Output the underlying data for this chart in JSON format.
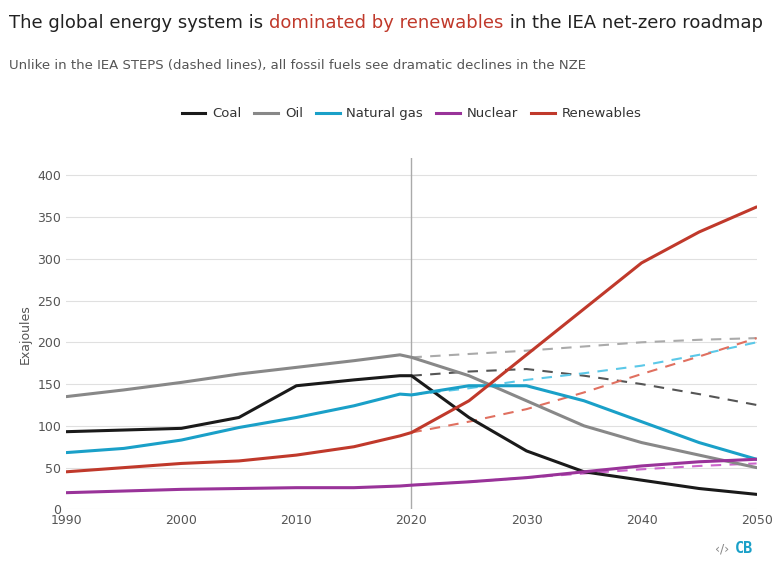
{
  "title_black1": "The global energy system is ",
  "title_red": "dominated by renewables",
  "title_black2": " in the IEA net-zero roadmap",
  "subtitle": "Unlike in the IEA STEPS (dashed lines), all fossil fuels see dramatic declines in the NZE",
  "ylabel": "Exajoules",
  "xlim": [
    1990,
    2050
  ],
  "ylim": [
    0,
    420
  ],
  "yticks": [
    0,
    50,
    100,
    150,
    200,
    250,
    300,
    350,
    400
  ],
  "xticks": [
    1990,
    2000,
    2010,
    2020,
    2030,
    2040,
    2050
  ],
  "vline_x": 2020,
  "background_color": "#ffffff",
  "grid_color": "#e0e0e0",
  "nze_series": {
    "Coal": {
      "color": "#1a1a1a",
      "x": [
        1990,
        1995,
        2000,
        2005,
        2010,
        2015,
        2019,
        2020,
        2025,
        2030,
        2035,
        2040,
        2045,
        2050
      ],
      "y": [
        93,
        95,
        97,
        110,
        148,
        155,
        160,
        160,
        110,
        70,
        45,
        35,
        25,
        18
      ]
    },
    "Oil": {
      "color": "#888888",
      "x": [
        1990,
        1995,
        2000,
        2005,
        2010,
        2015,
        2019,
        2020,
        2025,
        2030,
        2035,
        2040,
        2045,
        2050
      ],
      "y": [
        135,
        143,
        152,
        162,
        170,
        178,
        185,
        182,
        160,
        130,
        100,
        80,
        65,
        50
      ]
    },
    "Natural gas": {
      "color": "#1aa0c8",
      "x": [
        1990,
        1995,
        2000,
        2005,
        2010,
        2015,
        2019,
        2020,
        2025,
        2030,
        2035,
        2040,
        2045,
        2050
      ],
      "y": [
        68,
        73,
        83,
        98,
        110,
        124,
        138,
        137,
        148,
        148,
        130,
        105,
        80,
        60
      ]
    },
    "Nuclear": {
      "color": "#993399",
      "x": [
        1990,
        1995,
        2000,
        2005,
        2010,
        2015,
        2019,
        2020,
        2025,
        2030,
        2035,
        2040,
        2045,
        2050
      ],
      "y": [
        20,
        22,
        24,
        25,
        26,
        26,
        28,
        29,
        33,
        38,
        45,
        52,
        57,
        60
      ]
    },
    "Renewables": {
      "color": "#c0392b",
      "x": [
        1990,
        1995,
        2000,
        2005,
        2010,
        2015,
        2019,
        2020,
        2025,
        2030,
        2035,
        2040,
        2045,
        2050
      ],
      "y": [
        45,
        50,
        55,
        58,
        65,
        75,
        88,
        92,
        130,
        185,
        240,
        295,
        332,
        362
      ]
    }
  },
  "steps_series": {
    "Coal": {
      "color": "#555555",
      "x": [
        2020,
        2025,
        2030,
        2035,
        2040,
        2045,
        2050
      ],
      "y": [
        160,
        165,
        168,
        160,
        150,
        138,
        125
      ]
    },
    "Oil": {
      "color": "#aaaaaa",
      "x": [
        2020,
        2025,
        2030,
        2035,
        2040,
        2045,
        2050
      ],
      "y": [
        182,
        186,
        190,
        195,
        200,
        203,
        205
      ]
    },
    "Natural gas": {
      "color": "#5bc8e8",
      "x": [
        2020,
        2025,
        2030,
        2035,
        2040,
        2045,
        2050
      ],
      "y": [
        137,
        145,
        155,
        163,
        172,
        185,
        200
      ]
    },
    "Nuclear": {
      "color": "#cc66cc",
      "x": [
        2020,
        2025,
        2030,
        2035,
        2040,
        2045,
        2050
      ],
      "y": [
        29,
        33,
        38,
        43,
        48,
        52,
        55
      ]
    },
    "Renewables": {
      "color": "#e07060",
      "x": [
        2020,
        2025,
        2030,
        2035,
        2040,
        2045,
        2050
      ],
      "y": [
        92,
        105,
        120,
        140,
        162,
        183,
        205
      ]
    }
  },
  "legend_order": [
    "Coal",
    "Oil",
    "Natural gas",
    "Nuclear",
    "Renewables"
  ],
  "title_fontsize": 13,
  "subtitle_fontsize": 9.5,
  "axis_label_fontsize": 9,
  "tick_fontsize": 9,
  "legend_fontsize": 9.5
}
